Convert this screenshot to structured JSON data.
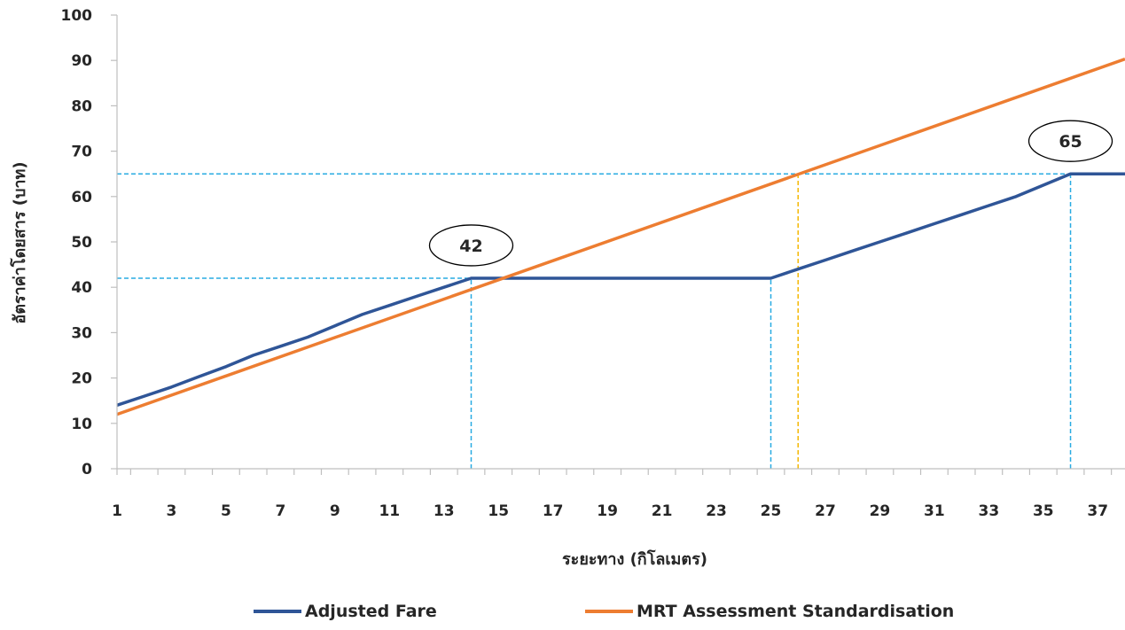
{
  "chart_data": {
    "type": "line",
    "title": "",
    "xlabel": "ระยะทาง (กิโลเมตร)",
    "ylabel": "อัตราค่าโดยสาร (บาท)",
    "xlim": [
      1,
      38
    ],
    "ylim": [
      0,
      100
    ],
    "yticks": [
      "0",
      "10",
      "20",
      "30",
      "40",
      "50",
      "60",
      "70",
      "80",
      "90",
      "100"
    ],
    "xtick_labels": [
      "1",
      "3",
      "5",
      "7",
      "9",
      "11",
      "13",
      "15",
      "17",
      "19",
      "21",
      "23",
      "25",
      "27",
      "29",
      "31",
      "33",
      "35",
      "37"
    ],
    "grid": false,
    "legend_position": "bottom",
    "series": [
      {
        "name": "Adjusted Fare",
        "color": "#2f5597",
        "points": [
          [
            1,
            14
          ],
          [
            2,
            16
          ],
          [
            3,
            18
          ],
          [
            4,
            20.3
          ],
          [
            5,
            22.5
          ],
          [
            6,
            25
          ],
          [
            7,
            27
          ],
          [
            8,
            29
          ],
          [
            9,
            31.5
          ],
          [
            10,
            34
          ],
          [
            11,
            36
          ],
          [
            12,
            38
          ],
          [
            13,
            40
          ],
          [
            14,
            42
          ],
          [
            15,
            42
          ],
          [
            16,
            42
          ],
          [
            17,
            42
          ],
          [
            18,
            42
          ],
          [
            19,
            42
          ],
          [
            20,
            42
          ],
          [
            21,
            42
          ],
          [
            22,
            42
          ],
          [
            23,
            42
          ],
          [
            24,
            42
          ],
          [
            25,
            42
          ],
          [
            26,
            44
          ],
          [
            27,
            46
          ],
          [
            28,
            48
          ],
          [
            29,
            50
          ],
          [
            30,
            52
          ],
          [
            31,
            54
          ],
          [
            32,
            56
          ],
          [
            33,
            58
          ],
          [
            34,
            60
          ],
          [
            35,
            62.5
          ],
          [
            36,
            65
          ],
          [
            37,
            65
          ],
          [
            38,
            65
          ]
        ]
      },
      {
        "name": "MRT Assessment Standardisation",
        "color": "#ed7d31",
        "points": [
          [
            1,
            12
          ],
          [
            38,
            90.3
          ]
        ]
      }
    ],
    "reference_lines": [
      {
        "color": "#29abe2",
        "type": "horizontal",
        "y": 42,
        "x_from": 1,
        "x_to": 14
      },
      {
        "color": "#29abe2",
        "type": "vertical",
        "x": 14,
        "y_from": 0,
        "y_to": 42
      },
      {
        "color": "#29abe2",
        "type": "horizontal",
        "y": 65,
        "x_from": 1,
        "x_to": 36
      },
      {
        "color": "#29abe2",
        "type": "vertical",
        "x": 36,
        "y_from": 0,
        "y_to": 65
      },
      {
        "color": "#29abe2",
        "type": "vertical",
        "x": 25,
        "y_from": 0,
        "y_to": 42
      },
      {
        "color": "#f5b800",
        "type": "vertical",
        "x": 26,
        "y_from": 0,
        "y_to": 65
      }
    ],
    "callouts": [
      {
        "label": "42",
        "x": 14,
        "y": 42
      },
      {
        "label": "65",
        "x": 36,
        "y": 65
      }
    ]
  }
}
